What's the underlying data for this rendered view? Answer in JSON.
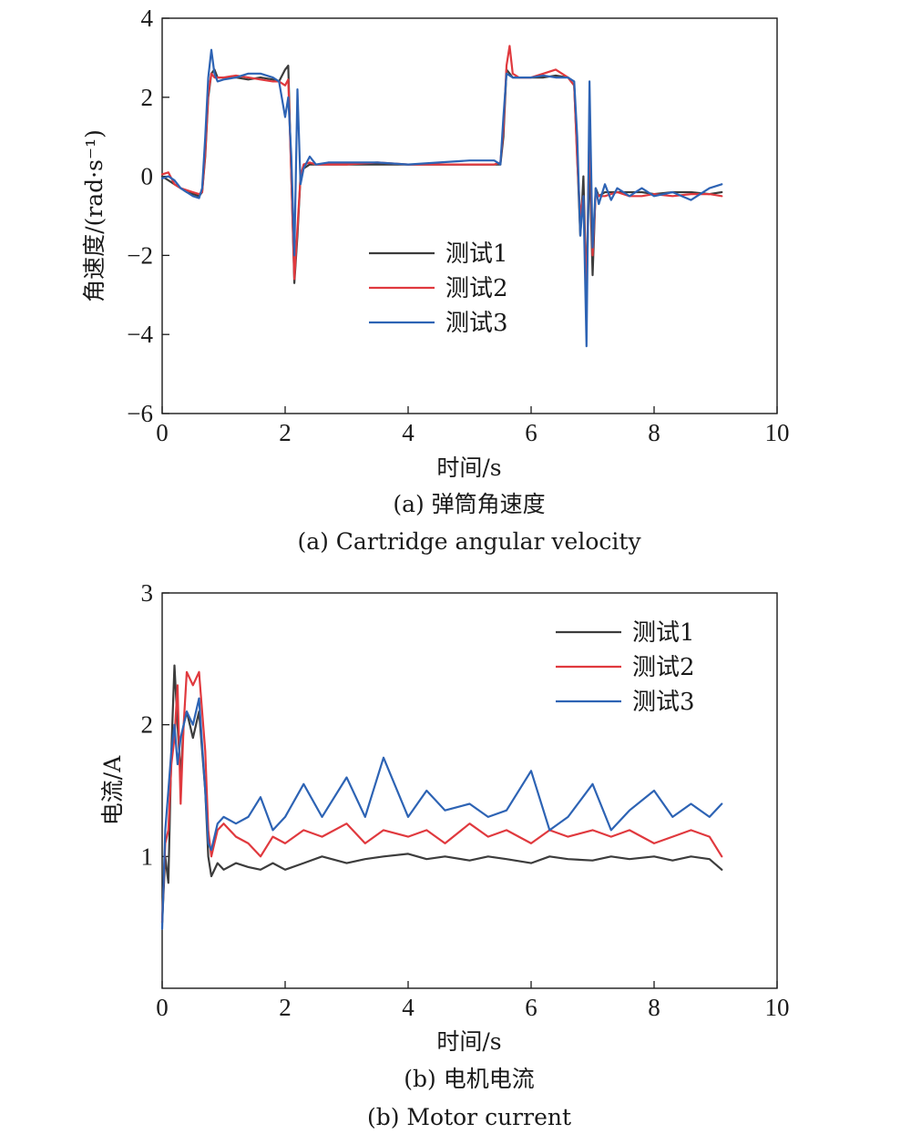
{
  "colors": {
    "test1": "#3c3c3c",
    "test2": "#e0393e",
    "test3": "#2d63b4"
  },
  "chart_data": [
    {
      "type": "line",
      "ylabel": "角速度/(rad·s⁻¹)",
      "xlabel": "时间/s",
      "caption_cn": "(a) 弹筒角速度",
      "caption_en": "(a) Cartridge angular velocity",
      "xlim": [
        0,
        10
      ],
      "ylim": [
        -6,
        4
      ],
      "xticks": [
        0,
        2,
        4,
        6,
        8,
        10
      ],
      "yticks": [
        -6,
        -4,
        -2,
        0,
        2,
        4
      ],
      "ytick_labels": [
        "−6",
        "−4",
        "−2",
        "0",
        "2",
        "4"
      ],
      "legend_position": "center",
      "series": [
        {
          "name": "测试1",
          "color": "#3c3c3c",
          "x": [
            0,
            0.1,
            0.2,
            0.3,
            0.4,
            0.5,
            0.6,
            0.65,
            0.7,
            0.75,
            0.8,
            0.85,
            0.9,
            1.0,
            1.2,
            1.4,
            1.6,
            1.8,
            1.9,
            2.0,
            2.05,
            2.1,
            2.15,
            2.2,
            2.25,
            2.3,
            2.4,
            2.5,
            2.7,
            3.0,
            3.5,
            4.0,
            4.5,
            5.0,
            5.4,
            5.5,
            5.55,
            5.6,
            5.7,
            5.8,
            6.0,
            6.2,
            6.4,
            6.6,
            6.7,
            6.75,
            6.8,
            6.85,
            6.9,
            6.95,
            7.0,
            7.05,
            7.1,
            7.2,
            7.4,
            7.6,
            7.8,
            8.0,
            8.3,
            8.6,
            8.9,
            9.1
          ],
          "y": [
            0.0,
            -0.1,
            -0.2,
            -0.3,
            -0.4,
            -0.45,
            -0.5,
            -0.4,
            0.5,
            2.0,
            2.6,
            2.7,
            2.5,
            2.5,
            2.5,
            2.45,
            2.5,
            2.45,
            2.4,
            2.7,
            2.8,
            0.0,
            -2.7,
            -1.5,
            0.0,
            0.2,
            0.3,
            0.3,
            0.3,
            0.3,
            0.3,
            0.3,
            0.3,
            0.3,
            0.3,
            0.3,
            1.0,
            2.7,
            2.5,
            2.5,
            2.5,
            2.5,
            2.55,
            2.5,
            2.3,
            0.5,
            -1.5,
            0.0,
            -3.0,
            0.5,
            -2.5,
            -0.3,
            -0.5,
            -0.4,
            -0.4,
            -0.4,
            -0.4,
            -0.45,
            -0.4,
            -0.4,
            -0.45,
            -0.4
          ]
        },
        {
          "name": "测试2",
          "color": "#e0393e",
          "x": [
            0,
            0.1,
            0.2,
            0.3,
            0.4,
            0.5,
            0.6,
            0.65,
            0.7,
            0.75,
            0.8,
            0.85,
            0.9,
            1.0,
            1.2,
            1.4,
            1.6,
            1.8,
            1.9,
            2.0,
            2.05,
            2.1,
            2.15,
            2.2,
            2.25,
            2.3,
            2.4,
            2.5,
            2.7,
            3.0,
            3.5,
            4.0,
            4.5,
            5.0,
            5.4,
            5.5,
            5.55,
            5.6,
            5.65,
            5.7,
            5.8,
            6.0,
            6.2,
            6.4,
            6.6,
            6.7,
            6.75,
            6.8,
            6.85,
            6.9,
            6.95,
            7.0,
            7.05,
            7.1,
            7.2,
            7.4,
            7.6,
            7.8,
            8.0,
            8.3,
            8.6,
            8.9,
            9.1
          ],
          "y": [
            0.05,
            0.1,
            -0.2,
            -0.3,
            -0.35,
            -0.4,
            -0.45,
            -0.4,
            0.6,
            2.1,
            2.6,
            2.5,
            2.5,
            2.5,
            2.55,
            2.5,
            2.45,
            2.4,
            2.4,
            2.3,
            2.45,
            0.0,
            -2.6,
            -1.3,
            0.0,
            0.3,
            0.35,
            0.3,
            0.3,
            0.3,
            0.35,
            0.3,
            0.3,
            0.3,
            0.3,
            0.35,
            1.2,
            2.8,
            3.3,
            2.6,
            2.5,
            2.5,
            2.6,
            2.7,
            2.5,
            2.3,
            0.4,
            -1.0,
            -0.5,
            -3.1,
            1.4,
            -2.0,
            -0.4,
            -0.5,
            -0.5,
            -0.4,
            -0.5,
            -0.5,
            -0.45,
            -0.5,
            -0.45,
            -0.45,
            -0.5
          ]
        },
        {
          "name": "测试3",
          "color": "#2d63b4",
          "x": [
            0,
            0.1,
            0.2,
            0.3,
            0.4,
            0.5,
            0.6,
            0.65,
            0.7,
            0.75,
            0.8,
            0.85,
            0.9,
            1.0,
            1.2,
            1.4,
            1.6,
            1.8,
            1.9,
            2.0,
            2.05,
            2.1,
            2.15,
            2.2,
            2.25,
            2.3,
            2.4,
            2.5,
            2.7,
            3.0,
            3.5,
            4.0,
            4.5,
            5.0,
            5.4,
            5.5,
            5.55,
            5.6,
            5.7,
            5.8,
            6.0,
            6.2,
            6.4,
            6.6,
            6.7,
            6.75,
            6.8,
            6.85,
            6.9,
            6.95,
            7.0,
            7.05,
            7.1,
            7.2,
            7.3,
            7.4,
            7.6,
            7.8,
            8.0,
            8.3,
            8.6,
            8.9,
            9.1
          ],
          "y": [
            -0.05,
            0.0,
            -0.1,
            -0.3,
            -0.4,
            -0.5,
            -0.55,
            -0.3,
            1.0,
            2.5,
            3.2,
            2.6,
            2.4,
            2.45,
            2.5,
            2.6,
            2.6,
            2.5,
            2.4,
            1.5,
            2.0,
            0.5,
            -2.0,
            2.2,
            -0.2,
            0.2,
            0.5,
            0.3,
            0.35,
            0.35,
            0.35,
            0.3,
            0.35,
            0.4,
            0.4,
            0.3,
            1.5,
            2.6,
            2.5,
            2.5,
            2.5,
            2.55,
            2.5,
            2.5,
            2.4,
            1.0,
            -1.5,
            -0.5,
            -4.3,
            2.4,
            -1.8,
            -0.3,
            -0.7,
            -0.2,
            -0.6,
            -0.3,
            -0.5,
            -0.3,
            -0.5,
            -0.4,
            -0.6,
            -0.3,
            -0.2
          ]
        }
      ]
    },
    {
      "type": "line",
      "ylabel": "电流/A",
      "xlabel": "时间/s",
      "caption_cn": "(b) 电机电流",
      "caption_en": "(b) Motor current",
      "xlim": [
        0,
        10
      ],
      "ylim": [
        0,
        3
      ],
      "xticks": [
        0,
        2,
        4,
        6,
        8,
        10
      ],
      "yticks": [
        1,
        2,
        3
      ],
      "ytick_labels": [
        "1",
        "2",
        "3"
      ],
      "legend_position": "top-right",
      "series": [
        {
          "name": "测试1",
          "color": "#3c3c3c",
          "x": [
            0,
            0.05,
            0.1,
            0.15,
            0.2,
            0.25,
            0.3,
            0.35,
            0.4,
            0.5,
            0.6,
            0.7,
            0.75,
            0.8,
            0.9,
            1.0,
            1.2,
            1.4,
            1.6,
            1.8,
            2.0,
            2.3,
            2.6,
            3.0,
            3.3,
            3.6,
            4.0,
            4.3,
            4.6,
            5.0,
            5.3,
            5.6,
            6.0,
            6.3,
            6.6,
            7.0,
            7.3,
            7.6,
            8.0,
            8.3,
            8.6,
            8.9,
            9.1
          ],
          "y": [
            0.5,
            1.0,
            0.8,
            1.8,
            2.45,
            2.0,
            1.6,
            2.0,
            2.1,
            1.9,
            2.1,
            1.5,
            1.0,
            0.85,
            0.95,
            0.9,
            0.95,
            0.92,
            0.9,
            0.95,
            0.9,
            0.95,
            1.0,
            0.95,
            0.98,
            1.0,
            1.02,
            0.98,
            1.0,
            0.97,
            1.0,
            0.98,
            0.95,
            1.0,
            0.98,
            0.97,
            1.0,
            0.98,
            1.0,
            0.97,
            1.0,
            0.98,
            0.9
          ]
        },
        {
          "name": "测试2",
          "color": "#e0393e",
          "x": [
            0,
            0.05,
            0.1,
            0.15,
            0.2,
            0.25,
            0.3,
            0.35,
            0.4,
            0.5,
            0.6,
            0.7,
            0.75,
            0.8,
            0.9,
            1.0,
            1.2,
            1.4,
            1.6,
            1.8,
            2.0,
            2.3,
            2.6,
            3.0,
            3.3,
            3.6,
            4.0,
            4.3,
            4.6,
            5.0,
            5.3,
            5.6,
            6.0,
            6.3,
            6.6,
            7.0,
            7.3,
            7.6,
            8.0,
            8.3,
            8.6,
            8.9,
            9.1
          ],
          "y": [
            0.5,
            1.1,
            1.2,
            1.7,
            1.9,
            2.3,
            1.4,
            2.0,
            2.4,
            2.3,
            2.4,
            1.8,
            1.2,
            1.0,
            1.2,
            1.25,
            1.15,
            1.1,
            1.0,
            1.15,
            1.1,
            1.2,
            1.15,
            1.25,
            1.1,
            1.2,
            1.15,
            1.2,
            1.1,
            1.25,
            1.15,
            1.2,
            1.1,
            1.2,
            1.15,
            1.2,
            1.15,
            1.2,
            1.1,
            1.15,
            1.2,
            1.15,
            1.0
          ]
        },
        {
          "name": "测试3",
          "color": "#2d63b4",
          "x": [
            0,
            0.05,
            0.1,
            0.15,
            0.2,
            0.25,
            0.3,
            0.35,
            0.4,
            0.5,
            0.6,
            0.7,
            0.75,
            0.8,
            0.9,
            1.0,
            1.2,
            1.4,
            1.6,
            1.8,
            2.0,
            2.3,
            2.6,
            3.0,
            3.3,
            3.6,
            4.0,
            4.3,
            4.6,
            5.0,
            5.3,
            5.6,
            6.0,
            6.3,
            6.6,
            7.0,
            7.3,
            7.6,
            8.0,
            8.3,
            8.6,
            8.9,
            9.1
          ],
          "y": [
            0.45,
            1.2,
            1.5,
            1.8,
            2.0,
            1.7,
            1.9,
            2.0,
            2.1,
            2.0,
            2.2,
            1.5,
            1.1,
            1.05,
            1.25,
            1.3,
            1.25,
            1.3,
            1.45,
            1.2,
            1.3,
            1.55,
            1.3,
            1.6,
            1.3,
            1.75,
            1.3,
            1.5,
            1.35,
            1.4,
            1.3,
            1.35,
            1.65,
            1.2,
            1.3,
            1.55,
            1.2,
            1.35,
            1.5,
            1.3,
            1.4,
            1.3,
            1.4
          ]
        }
      ]
    }
  ]
}
